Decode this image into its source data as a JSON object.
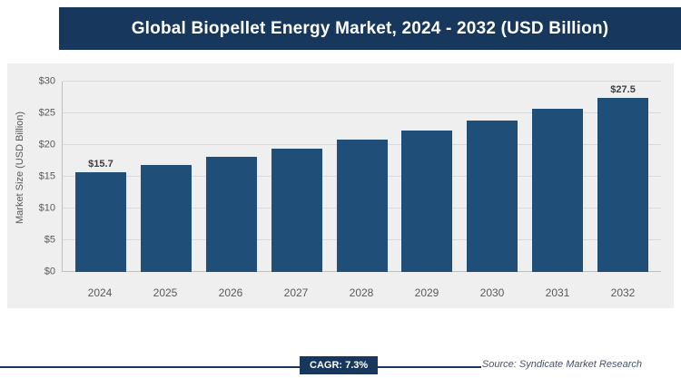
{
  "header": {
    "title": "Global Biopellet Energy Market, 2024 - 2032 (USD Billion)"
  },
  "footer": {
    "cagr_label": "CAGR: 7.3%",
    "source": "Source: Syndicate Market Research"
  },
  "colors": {
    "header_navy": "#17375c",
    "bar_blue": "#1f4e79",
    "panel_bg": "#efefef",
    "gridline": "#d9d9d9",
    "tick_text": "#595959",
    "source_text": "#44546a"
  },
  "chart_data": {
    "type": "bar",
    "title": "Global Biopellet Energy Market, 2024 - 2032 (USD Billion)",
    "categories": [
      "2024",
      "2025",
      "2026",
      "2027",
      "2028",
      "2029",
      "2030",
      "2031",
      "2032"
    ],
    "values": [
      15.7,
      16.8,
      18.1,
      19.4,
      20.8,
      22.3,
      23.9,
      25.7,
      27.5
    ],
    "value_labels": {
      "2024": "$15.7",
      "2032": "$27.5"
    },
    "xlabel": "",
    "ylabel": "Market Size (USD Billion)",
    "yticks": [
      "$0",
      "$5",
      "$10",
      "$15",
      "$20",
      "$25",
      "$30"
    ],
    "ytick_values": [
      0,
      5,
      10,
      15,
      20,
      25,
      30
    ],
    "ylim": [
      0,
      30
    ],
    "grid": true,
    "legend": false,
    "annotation": "CAGR: 7.3%"
  }
}
